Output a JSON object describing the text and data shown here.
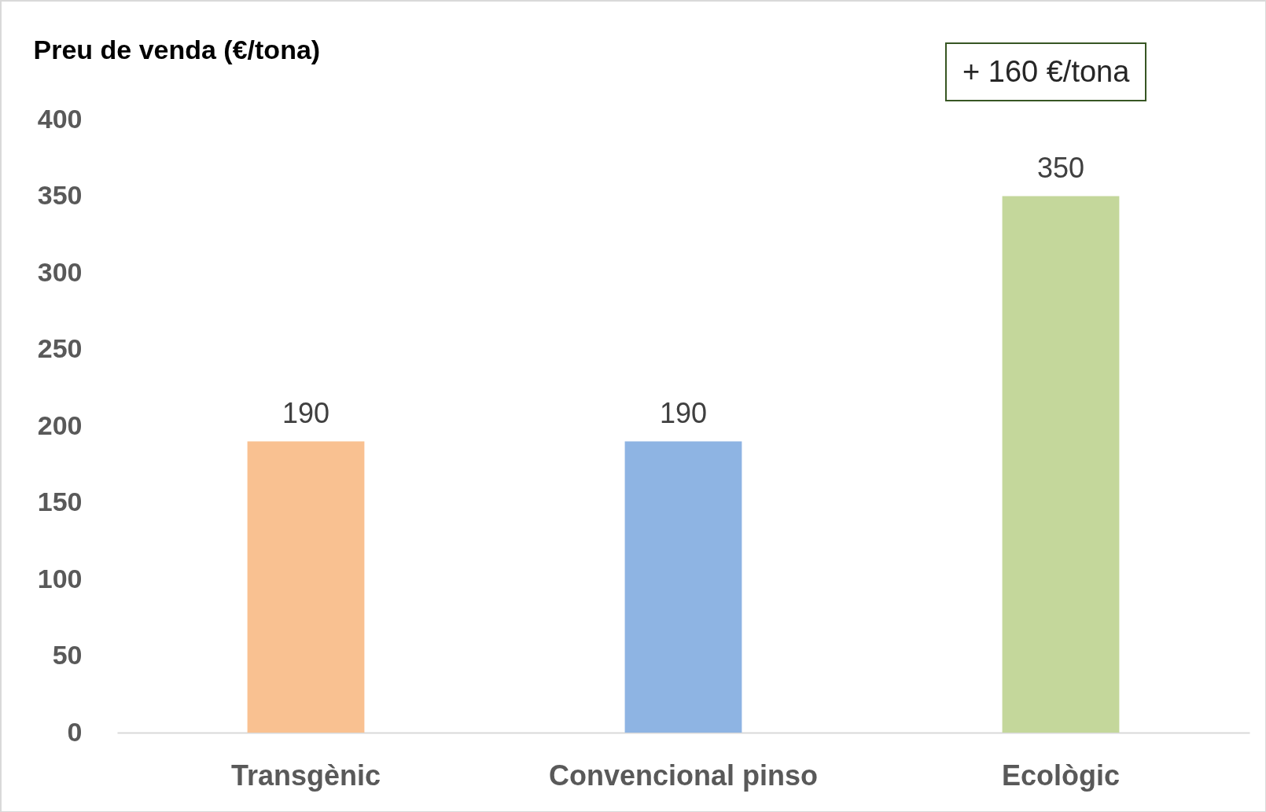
{
  "chart_data": {
    "type": "bar",
    "ylabel": "Preu de venda (€/tona)",
    "categories": [
      "Transgènic",
      "Convencional pinso",
      "Ecològic"
    ],
    "values": [
      190,
      190,
      350
    ],
    "colors": [
      "#f9c191",
      "#8eb4e3",
      "#c4d79b"
    ],
    "ylim": [
      0,
      400
    ],
    "yticks": [
      0,
      50,
      100,
      150,
      200,
      250,
      300,
      350,
      400
    ],
    "grid": false,
    "data_labels": true,
    "annotations": [
      "+ 160 €/tona"
    ]
  }
}
